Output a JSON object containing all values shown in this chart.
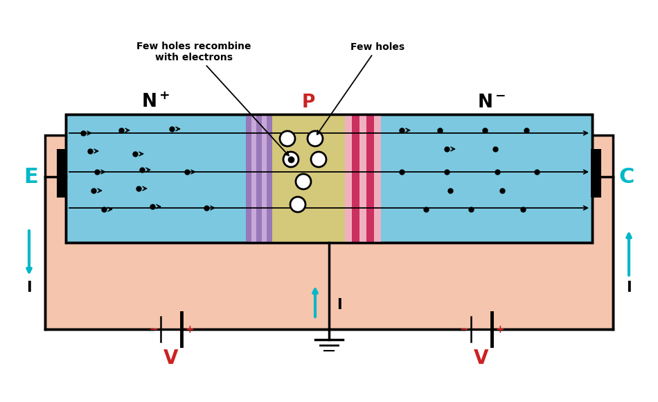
{
  "bg_color": "#FFFFFF",
  "body_color": "#F5C5AD",
  "n_region_color": "#7BC8E0",
  "p_region_color": "#D4C87A",
  "dep_left_color": "#C8A8D8",
  "dep_right_color": "#F0B8C8",
  "cyan_color": "#00B8C8",
  "red_color": "#CC2222",
  "black": "#000000",
  "annotation1": "Few holes recombine\nwith electrons",
  "annotation2": "Few holes",
  "label_E": "E",
  "label_C": "C",
  "label_I": "I",
  "label_V": "V",
  "label_P": "P"
}
